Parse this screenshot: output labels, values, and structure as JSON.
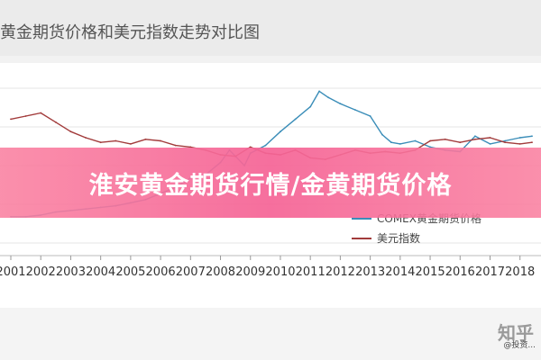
{
  "page": {
    "banner_text": "淮安黄金期货行情/金黄期货价格",
    "watermark_main": "知乎",
    "watermark_sub": "@投资..."
  },
  "chart_data": {
    "type": "line",
    "title": "黄金期货价格和美元指数走势对比图",
    "x_ticks": [
      "2001",
      "2002",
      "2003",
      "2004",
      "2005",
      "2006",
      "2007",
      "2008",
      "2009",
      "2010",
      "2011",
      "2012",
      "2013",
      "2014",
      "2015",
      "2016",
      "2017",
      "2018"
    ],
    "x_range": [
      2001,
      2018.4
    ],
    "y_range": [
      0,
      100
    ],
    "grid": true,
    "legend_position": "bottom-right",
    "series": [
      {
        "name": "COMEX黄金期货价格",
        "color": "#3a8db8",
        "points": [
          [
            2001.0,
            17
          ],
          [
            2001.5,
            17
          ],
          [
            2002.0,
            18
          ],
          [
            2002.5,
            20
          ],
          [
            2003.0,
            21
          ],
          [
            2003.5,
            22
          ],
          [
            2004.0,
            23
          ],
          [
            2004.5,
            24
          ],
          [
            2005.0,
            26
          ],
          [
            2005.5,
            28
          ],
          [
            2006.0,
            32
          ],
          [
            2006.5,
            36
          ],
          [
            2007.0,
            42
          ],
          [
            2007.5,
            44
          ],
          [
            2008.0,
            52
          ],
          [
            2008.3,
            60
          ],
          [
            2008.8,
            50
          ],
          [
            2009.0,
            58
          ],
          [
            2009.5,
            63
          ],
          [
            2010.0,
            72
          ],
          [
            2010.5,
            80
          ],
          [
            2011.0,
            88
          ],
          [
            2011.3,
            98
          ],
          [
            2011.6,
            94
          ],
          [
            2012.0,
            90
          ],
          [
            2012.5,
            86
          ],
          [
            2013.0,
            82
          ],
          [
            2013.4,
            70
          ],
          [
            2013.7,
            65
          ],
          [
            2014.0,
            64
          ],
          [
            2014.5,
            66
          ],
          [
            2015.0,
            62
          ],
          [
            2015.5,
            60
          ],
          [
            2016.0,
            59
          ],
          [
            2016.5,
            69
          ],
          [
            2017.0,
            64
          ],
          [
            2017.5,
            66
          ],
          [
            2018.0,
            68
          ],
          [
            2018.4,
            69
          ]
        ]
      },
      {
        "name": "美元指数",
        "color": "#a23b3b",
        "points": [
          [
            2001.0,
            80
          ],
          [
            2001.5,
            82
          ],
          [
            2002.0,
            84
          ],
          [
            2002.5,
            78
          ],
          [
            2003.0,
            72
          ],
          [
            2003.5,
            68
          ],
          [
            2004.0,
            65
          ],
          [
            2004.5,
            66
          ],
          [
            2005.0,
            64
          ],
          [
            2005.5,
            67
          ],
          [
            2006.0,
            66
          ],
          [
            2006.5,
            63
          ],
          [
            2007.0,
            62
          ],
          [
            2007.5,
            60
          ],
          [
            2008.0,
            57
          ],
          [
            2008.5,
            56
          ],
          [
            2009.0,
            62
          ],
          [
            2009.5,
            58
          ],
          [
            2010.0,
            57
          ],
          [
            2010.5,
            60
          ],
          [
            2011.0,
            55
          ],
          [
            2011.5,
            54
          ],
          [
            2012.0,
            57
          ],
          [
            2012.5,
            60
          ],
          [
            2013.0,
            58
          ],
          [
            2013.5,
            59
          ],
          [
            2014.0,
            58
          ],
          [
            2014.5,
            60
          ],
          [
            2015.0,
            66
          ],
          [
            2015.5,
            67
          ],
          [
            2016.0,
            65
          ],
          [
            2016.5,
            67
          ],
          [
            2017.0,
            68
          ],
          [
            2017.5,
            65
          ],
          [
            2018.0,
            64
          ],
          [
            2018.4,
            65
          ]
        ]
      }
    ]
  }
}
